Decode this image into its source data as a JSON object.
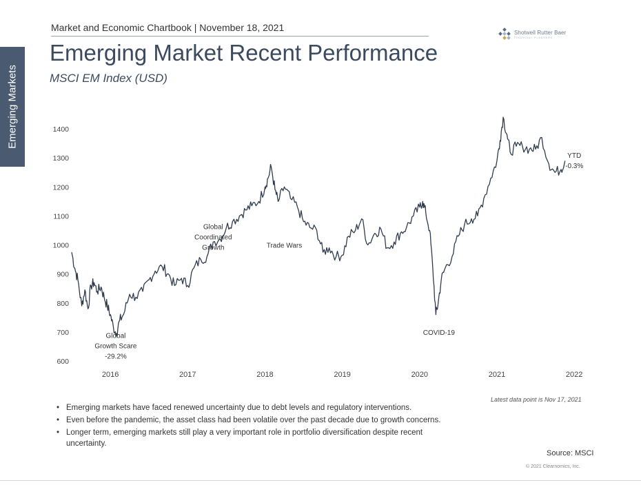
{
  "side_tab": "Emerging Markets",
  "header": {
    "chartbook": "Market and Economic Chartbook | November 18, 2021",
    "title": "Emerging Market Recent Performance",
    "subtitle": "MSCI EM Index (USD)"
  },
  "logo": {
    "name": "Shotwell Rutter Baer",
    "tagline": "FINANCIAL PLANNERS",
    "icon": "diamond-grid-icon",
    "colors": [
      "#5a6c84",
      "#a7b3c3",
      "#c9a64c"
    ]
  },
  "chart_data": {
    "type": "line",
    "title": "Emerging Market Recent Performance",
    "subtitle": "MSCI EM Index (USD)",
    "xlabel": "",
    "ylabel": "",
    "xlim": [
      2015.5,
      2022.15
    ],
    "ylim": [
      600,
      1450
    ],
    "x_ticks": [
      "2016",
      "2017",
      "2018",
      "2019",
      "2020",
      "2021",
      "2022"
    ],
    "y_ticks": [
      "600",
      "700",
      "800",
      "900",
      "1000",
      "1100",
      "1200",
      "1300",
      "1400"
    ],
    "grid": false,
    "line_color": "#2f3b4c",
    "series": [
      {
        "x": [
          2015.5,
          2015.54,
          2015.58,
          2015.63,
          2015.67,
          2015.71,
          2015.75,
          2015.79,
          2015.83,
          2015.88,
          2015.92,
          2015.96,
          2016.0,
          2016.04,
          2016.08,
          2016.12,
          2016.17,
          2016.25,
          2016.33,
          2016.42,
          2016.5,
          2016.58,
          2016.67,
          2016.75,
          2016.83,
          2016.92,
          2017.0,
          2017.08,
          2017.17,
          2017.25,
          2017.33,
          2017.42,
          2017.5,
          2017.58,
          2017.67,
          2017.75,
          2017.83,
          2017.92,
          2018.0,
          2018.04,
          2018.08,
          2018.13,
          2018.17,
          2018.25,
          2018.33,
          2018.42,
          2018.5,
          2018.58,
          2018.67,
          2018.75,
          2018.83,
          2018.92,
          2019.0,
          2019.08,
          2019.17,
          2019.25,
          2019.33,
          2019.42,
          2019.5,
          2019.58,
          2019.67,
          2019.75,
          2019.83,
          2019.92,
          2020.0,
          2020.04,
          2020.08,
          2020.13,
          2020.17,
          2020.21,
          2020.24,
          2020.28,
          2020.33,
          2020.42,
          2020.5,
          2020.58,
          2020.67,
          2020.75,
          2020.83,
          2020.92,
          2021.0,
          2021.04,
          2021.08,
          2021.13,
          2021.17,
          2021.25,
          2021.33,
          2021.42,
          2021.5,
          2021.58,
          2021.67,
          2021.75,
          2021.83,
          2021.88
        ],
        "y": [
          975,
          920,
          880,
          790,
          845,
          780,
          860,
          870,
          840,
          855,
          820,
          790,
          760,
          715,
          695,
          740,
          760,
          830,
          820,
          840,
          880,
          910,
          925,
          900,
          860,
          885,
          860,
          920,
          950,
          960,
          1010,
          1020,
          1060,
          1080,
          1100,
          1120,
          1135,
          1150,
          1200,
          1230,
          1270,
          1190,
          1150,
          1200,
          1160,
          1130,
          1080,
          1060,
          1050,
          975,
          990,
          960,
          965,
          1030,
          1050,
          1090,
          1000,
          1040,
          1055,
          990,
          1010,
          1040,
          1060,
          1100,
          1130,
          1150,
          1110,
          1050,
          920,
          760,
          800,
          880,
          920,
          960,
          1030,
          1070,
          1090,
          1100,
          1160,
          1230,
          1290,
          1360,
          1440,
          1380,
          1320,
          1340,
          1340,
          1330,
          1330,
          1370,
          1280,
          1250,
          1260,
          1290
        ]
      }
    ],
    "annotations": [
      {
        "lines": [
          "Global",
          "Growth Scare",
          "-29.2%"
        ],
        "x": 2016.07,
        "y": 680
      },
      {
        "lines": [
          "Global",
          "Coordinated",
          "Growth"
        ],
        "x": 2017.33,
        "y": 1055
      },
      {
        "lines": [
          "Trade Wars"
        ],
        "x": 2018.25,
        "y": 990
      },
      {
        "lines": [
          "COVID-19"
        ],
        "x": 2020.25,
        "y": 690
      },
      {
        "lines": [
          "YTD",
          "-0.3%"
        ],
        "x": 2022.0,
        "y": 1300
      }
    ]
  },
  "bullets": [
    "Emerging markets have faced renewed uncertainty due to debt levels and regulatory interventions.",
    "Even before the pandemic, the asset class had been volatile over the past decade due to growth concerns.",
    "Longer term, emerging markets still play a very important role in portfolio diversification despite recent uncertainty."
  ],
  "footnote": "Latest data point is Nov 17, 2021",
  "source": "Source: MSCI",
  "copyright": "© 2021 Clearnomics, Inc."
}
